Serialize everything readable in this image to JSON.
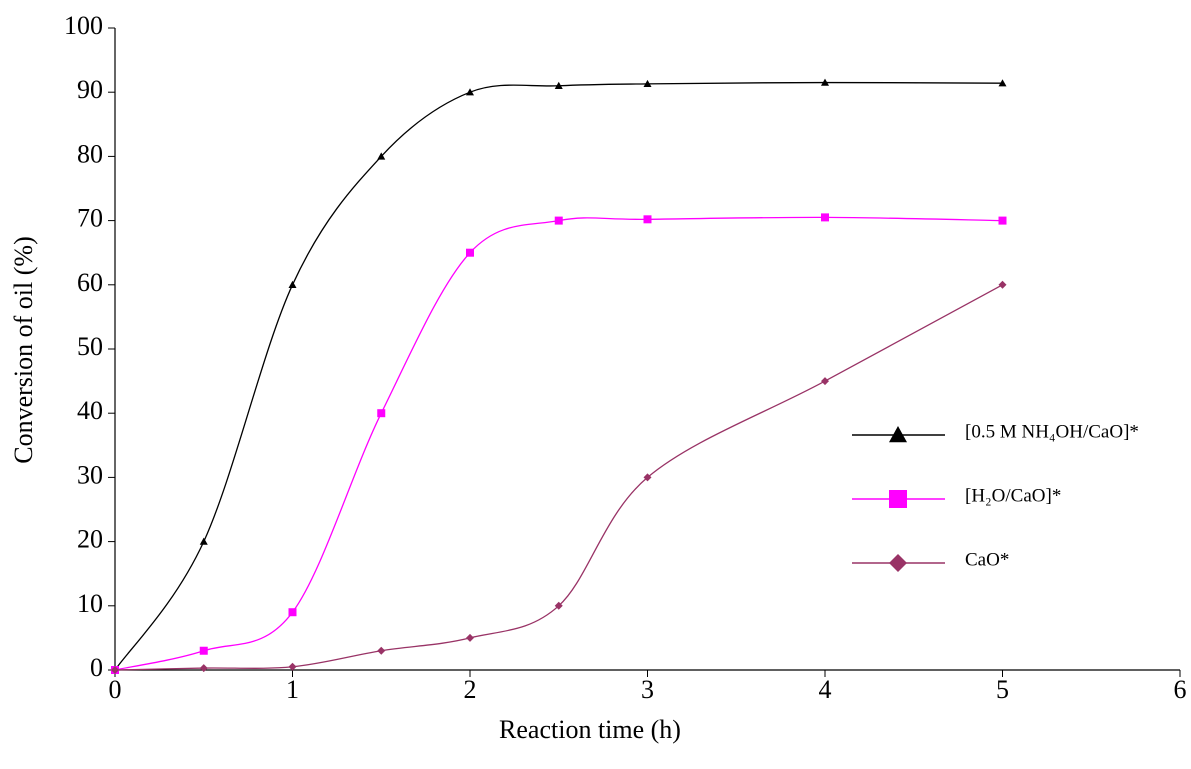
{
  "chart_data": {
    "type": "line",
    "x_label": "Reaction time (h)",
    "y_label": "Conversion of oil (%)",
    "x": [
      0,
      0.5,
      1,
      1.5,
      2,
      2.5,
      3,
      4,
      5
    ],
    "series": [
      {
        "name": "[0.5 M NH₄OH/CaO]*",
        "color": "#000000",
        "marker": "triangle",
        "values": [
          0,
          20,
          60,
          80,
          90,
          91,
          91.3,
          91.5,
          91.4
        ]
      },
      {
        "name": "[H₂O/CaO]*",
        "color": "#ff00ff",
        "marker": "square",
        "values": [
          0,
          3,
          9,
          40,
          65,
          70,
          70.2,
          70.5,
          70
        ]
      },
      {
        "name": "CaO*",
        "color": "#993366",
        "marker": "diamond",
        "values": [
          0,
          0.3,
          0.5,
          3,
          5,
          10,
          30,
          45,
          60
        ]
      }
    ],
    "xlim": [
      0,
      6
    ],
    "xticks": [
      0,
      1,
      2,
      3,
      4,
      5,
      6
    ],
    "ylim": [
      0,
      100
    ],
    "yticks": [
      0,
      10,
      20,
      30,
      40,
      50,
      60,
      70,
      80,
      90,
      100
    ],
    "grid": false,
    "smooth": true,
    "legend": "right"
  }
}
